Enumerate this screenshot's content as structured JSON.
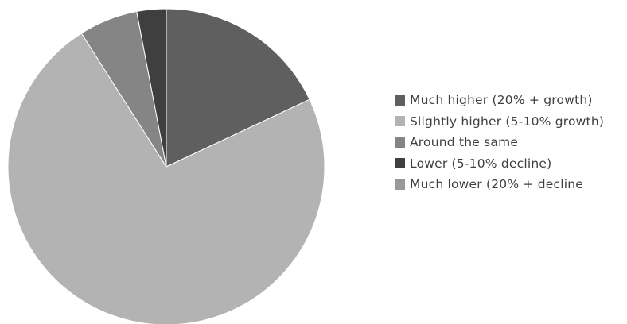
{
  "chart_data": {
    "type": "pie",
    "title": "",
    "start_angle_deg": 0,
    "direction": "clockwise",
    "legend_position": "right",
    "slices": [
      {
        "label": "Much higher (20% + growth)",
        "value": 18,
        "color": "#5f5f5f"
      },
      {
        "label": "Slightly higher (5-10% growth)",
        "value": 73,
        "color": "#b3b3b3"
      },
      {
        "label": "Around the same",
        "value": 6,
        "color": "#858585"
      },
      {
        "label": "Lower (5-10% decline)",
        "value": 3,
        "color": "#3f3f3f"
      },
      {
        "label": "Much lower (20% + decline",
        "value": 0,
        "color": "#999999"
      }
    ]
  }
}
